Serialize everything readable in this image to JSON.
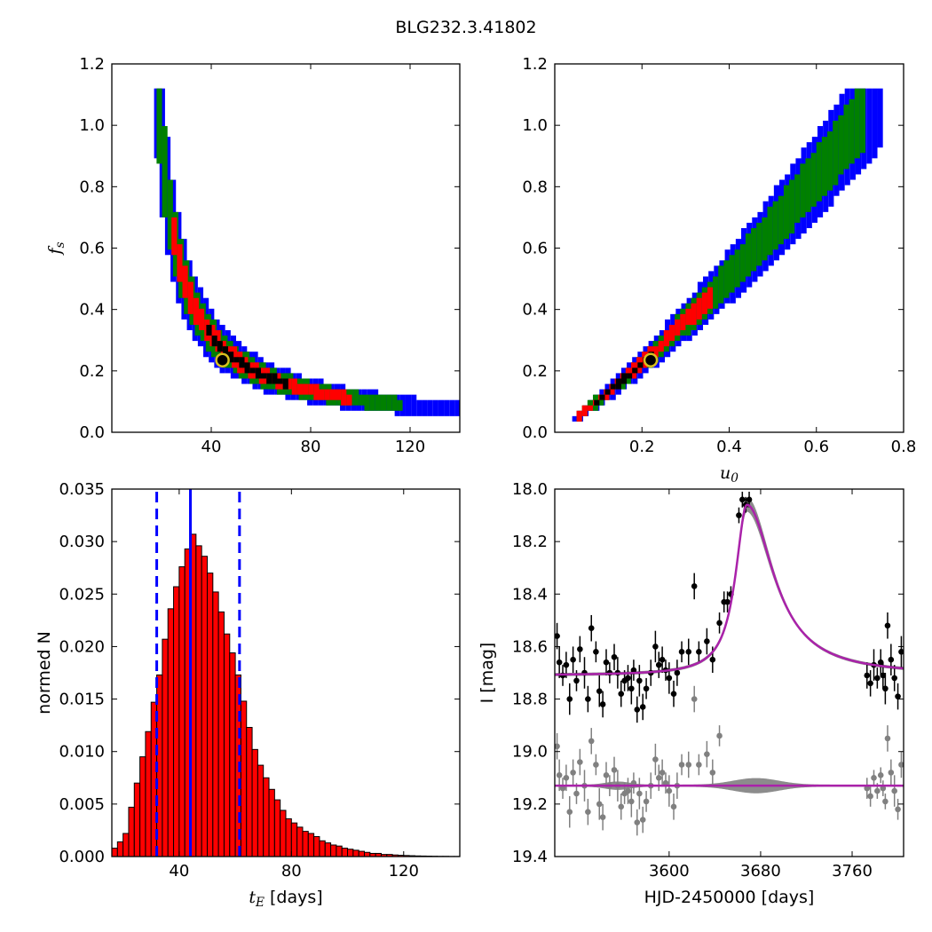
{
  "figure": {
    "title": "BLG232.3.41802"
  },
  "chart_data": [
    {
      "type": "heatmap",
      "panel": "top-left",
      "title": "",
      "xlabel": "",
      "ylabel": "f_s",
      "xlim": [
        0,
        140
      ],
      "ylim": [
        0.0,
        1.2
      ],
      "xticks": [
        40,
        80,
        120
      ],
      "xtick_labels": [
        "40",
        "80",
        "120"
      ],
      "yticks": [
        0.0,
        0.2,
        0.4,
        0.6,
        0.8,
        1.0,
        1.2
      ],
      "ytick_labels": [
        "0.0",
        "0.2",
        "0.4",
        "0.6",
        "0.8",
        "1.0",
        "1.2"
      ],
      "legend": "none",
      "colors": {
        "3sigma": "#0000ff",
        "2sigma": "#008000",
        "1sigma": "#ff0000",
        "core": "#000000"
      },
      "region_relation": "f_s ≈ 9.5 / (t_E − 9)",
      "bands_relative_width": {
        "3sigma": 0.24,
        "2sigma": 0.16,
        "1sigma": 0.085,
        "core": 0.03
      },
      "x_extent": {
        "3sigma": [
          17,
          140
        ],
        "2sigma": [
          18,
          115
        ],
        "1sigma": [
          24,
          95
        ],
        "core": [
          38,
          70
        ]
      },
      "best_fit": {
        "x": 44.5,
        "y": 0.235,
        "marker": "circle",
        "edge": "#d8c020",
        "face": "#000000"
      }
    },
    {
      "type": "heatmap",
      "panel": "top-right",
      "title": "",
      "xlabel": "u_0",
      "ylabel": "",
      "xlim": [
        0.0,
        0.8
      ],
      "ylim": [
        0.0,
        1.2
      ],
      "xticks": [
        0.2,
        0.4,
        0.6,
        0.8
      ],
      "xtick_labels": [
        "0.2",
        "0.4",
        "0.6",
        "0.8"
      ],
      "yticks": [
        0.0,
        0.2,
        0.4,
        0.6,
        0.8,
        1.0,
        1.2
      ],
      "ytick_labels": [
        "0.0",
        "0.2",
        "0.4",
        "0.6",
        "0.8",
        "1.0",
        "1.2"
      ],
      "legend": "none",
      "colors": {
        "3sigma": "#0000ff",
        "2sigma": "#008000",
        "1sigma": "#ff0000",
        "core": "#000000"
      },
      "region_relation": "f_s ≈ 1.05·u_0 + 0.6·u_0²",
      "bands_relative_width": {
        "3sigma": 0.16,
        "2sigma": 0.1,
        "1sigma": 0.05,
        "core": 0.015
      },
      "x_extent": {
        "3sigma": [
          0.04,
          0.74
        ],
        "2sigma": [
          0.05,
          0.7
        ],
        "1sigma": [
          0.05,
          0.36
        ],
        "core": [
          0.09,
          0.22
        ]
      },
      "best_fit": {
        "x": 0.22,
        "y": 0.235,
        "marker": "circle",
        "edge": "#d8c020",
        "face": "#000000"
      }
    },
    {
      "type": "bar",
      "panel": "bottom-left",
      "title": "",
      "xlabel": "t_E  [days]",
      "ylabel": "normed N",
      "xlim": [
        16,
        140
      ],
      "ylim": [
        0.0,
        0.035
      ],
      "xticks": [
        40,
        80,
        120
      ],
      "xtick_labels": [
        "40",
        "80",
        "120"
      ],
      "yticks": [
        0.0,
        0.005,
        0.01,
        0.015,
        0.02,
        0.025,
        0.03,
        0.035
      ],
      "ytick_labels": [
        "0.000",
        "0.005",
        "0.010",
        "0.015",
        "0.020",
        "0.025",
        "0.030",
        "0.035"
      ],
      "legend": "none",
      "bar_color": "#ff0000",
      "bin_edges_start": 16,
      "bin_width": 2,
      "values": [
        0.0008,
        0.0014,
        0.0022,
        0.0047,
        0.007,
        0.0095,
        0.0119,
        0.0147,
        0.0173,
        0.0207,
        0.0236,
        0.0257,
        0.0276,
        0.0293,
        0.0307,
        0.0296,
        0.0286,
        0.027,
        0.0252,
        0.0233,
        0.0212,
        0.0194,
        0.0173,
        0.0148,
        0.0123,
        0.0102,
        0.0087,
        0.0075,
        0.0064,
        0.0054,
        0.0044,
        0.0036,
        0.0032,
        0.0028,
        0.0024,
        0.0022,
        0.0019,
        0.0015,
        0.0013,
        0.0011,
        0.001,
        0.0008,
        0.0007,
        0.0006,
        0.0005,
        0.0004,
        0.0003,
        0.0003,
        0.0002,
        0.0002,
        0.00015,
        0.00012,
        0.0001,
        8e-05,
        6e-05,
        5e-05,
        4e-05,
        3e-05,
        2e-05,
        2e-05,
        1e-05,
        1e-05
      ],
      "median_line": {
        "x": 44,
        "color": "#0000ff",
        "style": "solid"
      },
      "bound_lines": [
        {
          "x": 32,
          "color": "#0000ff",
          "style": "dashed"
        },
        {
          "x": 61.5,
          "color": "#0000ff",
          "style": "dashed"
        }
      ]
    },
    {
      "type": "scatter",
      "panel": "bottom-right",
      "title": "",
      "xlabel": "HJD-2450000 [days]",
      "ylabel": "I [mag]",
      "xlim": [
        3500,
        3805
      ],
      "ylim": [
        19.4,
        18.0
      ],
      "y_inverted": true,
      "xticks": [
        3600,
        3680,
        3760
      ],
      "xtick_labels": [
        "3600",
        "3680",
        "3760"
      ],
      "yticks": [
        18.0,
        18.2,
        18.4,
        18.6,
        18.8,
        19.0,
        19.2,
        19.4
      ],
      "ytick_labels": [
        "18.0",
        "18.2",
        "18.4",
        "18.6",
        "18.8",
        "19.0",
        "19.2",
        "19.4"
      ],
      "legend": "none",
      "model": {
        "baseline": 18.71,
        "peak": 18.06,
        "t0": 3668,
        "rise_width": 12,
        "decay_width": 22,
        "color": "#aa22aa",
        "band_color": "#808080"
      },
      "residual_baseline": 19.13,
      "series": [
        {
          "color": "#000000",
          "x": [
            3502,
            3504,
            3507,
            3510,
            3513,
            3516,
            3519,
            3522,
            3526,
            3529,
            3532,
            3536,
            3539,
            3542,
            3545,
            3548,
            3552,
            3555,
            3558,
            3561,
            3564,
            3567,
            3569,
            3572,
            3574,
            3577,
            3580,
            3584,
            3588,
            3591,
            3594,
            3597,
            3600,
            3604,
            3607,
            3611,
            3617,
            3622,
            3626,
            3633,
            3638,
            3644,
            3648,
            3651,
            3654,
            3661,
            3664,
            3667,
            3670,
            3773,
            3776,
            3779,
            3782,
            3785,
            3787,
            3789,
            3791,
            3794,
            3797,
            3800,
            3803
          ],
          "y": [
            18.56,
            18.66,
            18.71,
            18.67,
            18.8,
            18.65,
            18.73,
            18.61,
            18.7,
            18.8,
            18.53,
            18.62,
            18.77,
            18.82,
            18.66,
            18.7,
            18.64,
            18.7,
            18.78,
            18.73,
            18.72,
            18.76,
            18.69,
            18.84,
            18.73,
            18.83,
            18.76,
            18.7,
            18.6,
            18.67,
            18.65,
            18.69,
            18.72,
            18.78,
            18.7,
            18.62,
            18.62,
            18.37,
            18.62,
            18.58,
            18.65,
            18.51,
            18.43,
            18.43,
            18.4,
            18.1,
            18.04,
            18.06,
            18.04,
            18.71,
            18.74,
            18.67,
            18.72,
            18.66,
            18.71,
            18.76,
            18.52,
            18.65,
            18.72,
            18.79,
            18.62
          ]
        },
        {
          "color": "#808080",
          "x": [
            3502,
            3504,
            3507,
            3510,
            3513,
            3516,
            3519,
            3522,
            3526,
            3529,
            3532,
            3536,
            3539,
            3542,
            3545,
            3548,
            3552,
            3555,
            3558,
            3561,
            3564,
            3567,
            3569,
            3572,
            3574,
            3577,
            3580,
            3584,
            3588,
            3591,
            3594,
            3597,
            3600,
            3604,
            3607,
            3611,
            3617,
            3622,
            3626,
            3633,
            3638,
            3644,
            3773,
            3776,
            3779,
            3782,
            3785,
            3787,
            3789,
            3791,
            3794,
            3797,
            3800,
            3803
          ],
          "y": [
            18.98,
            19.09,
            19.14,
            19.1,
            19.23,
            19.08,
            19.16,
            19.04,
            19.13,
            19.23,
            18.96,
            19.05,
            19.2,
            19.25,
            19.09,
            19.13,
            19.07,
            19.13,
            19.21,
            19.16,
            19.15,
            19.19,
            19.12,
            19.27,
            19.16,
            19.26,
            19.19,
            19.13,
            19.03,
            19.1,
            19.08,
            19.12,
            19.15,
            19.21,
            19.13,
            19.05,
            19.05,
            18.8,
            19.05,
            19.01,
            19.08,
            18.94,
            19.14,
            19.17,
            19.1,
            19.15,
            19.09,
            19.14,
            19.19,
            18.95,
            19.08,
            19.15,
            19.22,
            19.05
          ]
        }
      ],
      "error_bars_half": [
        0.05,
        0.06,
        0.04,
        0.05,
        0.06,
        0.05,
        0.04,
        0.05,
        0.06,
        0.05,
        0.05,
        0.04,
        0.06,
        0.05,
        0.05,
        0.04,
        0.05,
        0.06,
        0.05,
        0.04,
        0.05,
        0.06,
        0.04,
        0.05,
        0.06,
        0.05,
        0.04,
        0.05,
        0.06,
        0.05,
        0.05,
        0.04,
        0.06,
        0.05,
        0.05,
        0.04,
        0.05,
        0.05,
        0.04,
        0.05,
        0.05,
        0.04,
        0.04,
        0.04,
        0.03,
        0.03,
        0.03,
        0.03,
        0.03,
        0.05,
        0.05,
        0.06,
        0.04,
        0.05,
        0.05,
        0.06,
        0.05,
        0.06,
        0.05,
        0.05,
        0.06
      ]
    }
  ]
}
